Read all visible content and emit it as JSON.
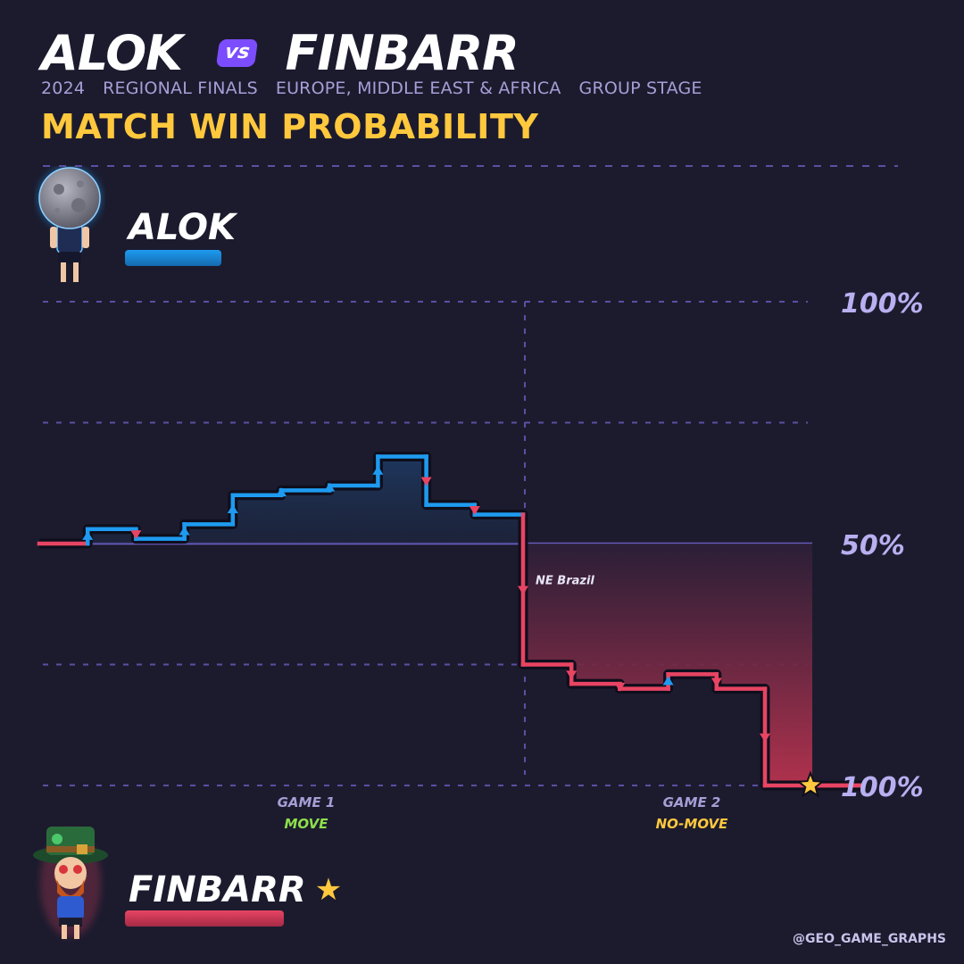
{
  "header": {
    "player1": "ALOK",
    "vs": "vs",
    "player2": "FINBARR",
    "year": "2024",
    "event": "REGIONAL FINALS",
    "region": "EUROPE, MIDDLE EAST & AFRICA",
    "stage": "GROUP STAGE",
    "chart_title": "MATCH WIN PROBABILITY"
  },
  "players": {
    "top": {
      "name": "ALOK",
      "color": "#1e9bf0"
    },
    "bottom": {
      "name": "FINBARR",
      "winner_star": "★",
      "color": "#e84463"
    }
  },
  "credit": "@GEO_GAME_GRAPHS",
  "colors": {
    "background": "#1c1b2e",
    "player1_line": "#1e9bf0",
    "player2_line": "#e84463",
    "accent_yellow": "#ffc83d",
    "grid": "#5b4fa3"
  },
  "chart_data": {
    "type": "line",
    "subtype": "step",
    "title": "MATCH WIN PROBABILITY",
    "y_axis_meaning": "Alok match win probability (0 = Finbarr 100%)",
    "ylim": [
      0,
      100
    ],
    "y_tick_labels": [
      {
        "value": 100,
        "label": "100%"
      },
      {
        "value": 50,
        "label": "50%"
      },
      {
        "value": 0,
        "label": "100%"
      }
    ],
    "grid": true,
    "step_x": [
      0,
      1,
      2,
      3,
      4,
      5,
      6,
      7,
      8,
      9,
      10,
      11,
      12,
      13,
      14,
      15,
      16,
      17
    ],
    "values": [
      50,
      53,
      51,
      54,
      60,
      61,
      62,
      68,
      58,
      56,
      25,
      21,
      20,
      23,
      20,
      0,
      0,
      0
    ],
    "game_boundary_after_step": 10,
    "games": [
      {
        "label": "GAME 1",
        "mode": "MOVE",
        "mode_color": "#8ee04a"
      },
      {
        "label": "GAME 2",
        "mode": "NO-MOVE",
        "mode_color": "#ffc83d"
      }
    ],
    "annotations": [
      {
        "step": 10,
        "text": "NE Brazil"
      }
    ],
    "winner": "FINBARR"
  }
}
